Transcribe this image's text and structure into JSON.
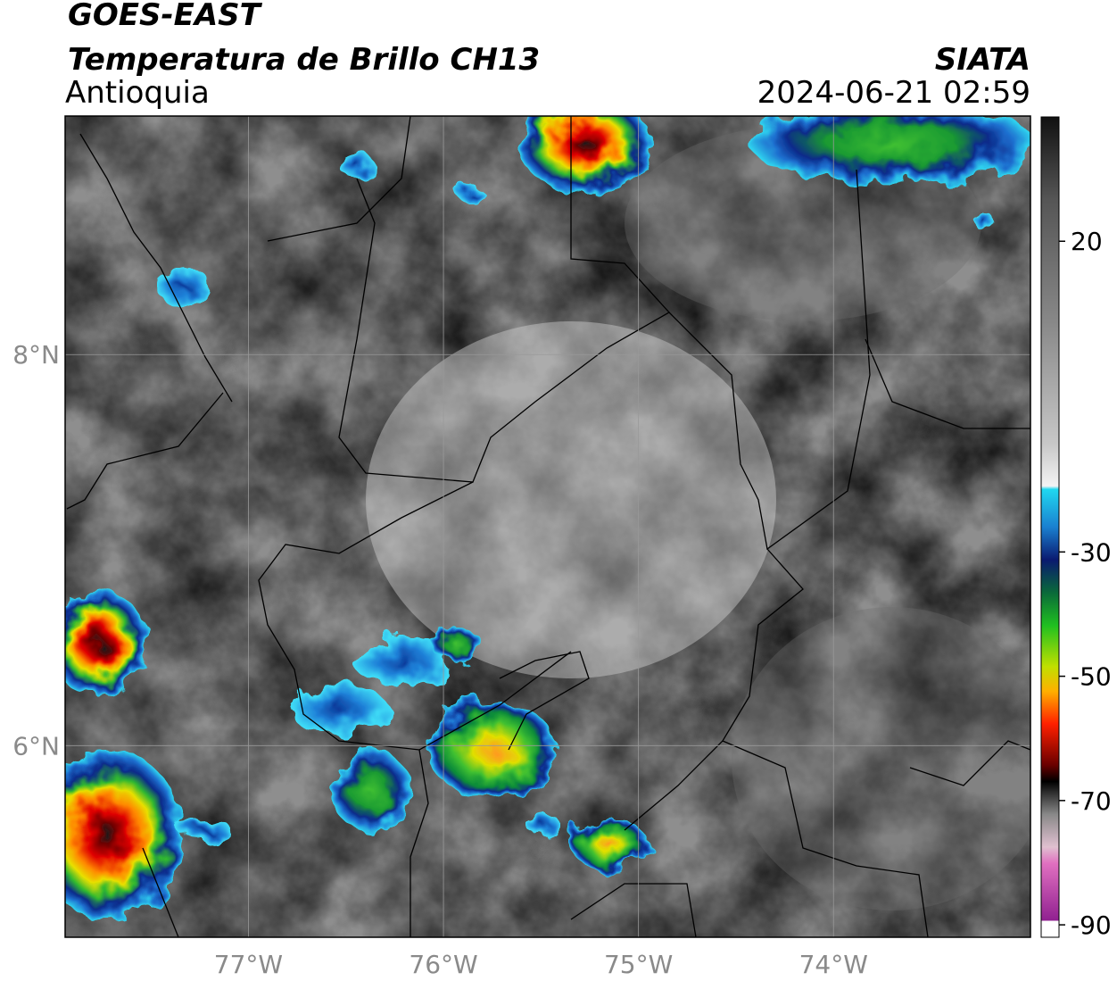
{
  "header": {
    "title": "GOES-EAST",
    "subtitle": "Temperatura de Brillo CH13",
    "region": "Antioquia",
    "source": "SIATA",
    "datetime": "2024-06-21 02:59"
  },
  "map": {
    "xlim": [
      -77.94,
      -72.99
    ],
    "ylim": [
      5.02,
      9.22
    ],
    "xticks": [
      {
        "value": -77,
        "label": "77°W"
      },
      {
        "value": -76,
        "label": "76°W"
      },
      {
        "value": -75,
        "label": "75°W"
      },
      {
        "value": -74,
        "label": "74°W"
      }
    ],
    "yticks": [
      {
        "value": 8,
        "label": "8°N"
      },
      {
        "value": 6,
        "label": "6°N"
      }
    ],
    "grid": true
  },
  "colorbar": {
    "lim": [
      -92,
      40
    ],
    "ticks": [
      20,
      -30,
      -50,
      -70,
      -90
    ]
  }
}
